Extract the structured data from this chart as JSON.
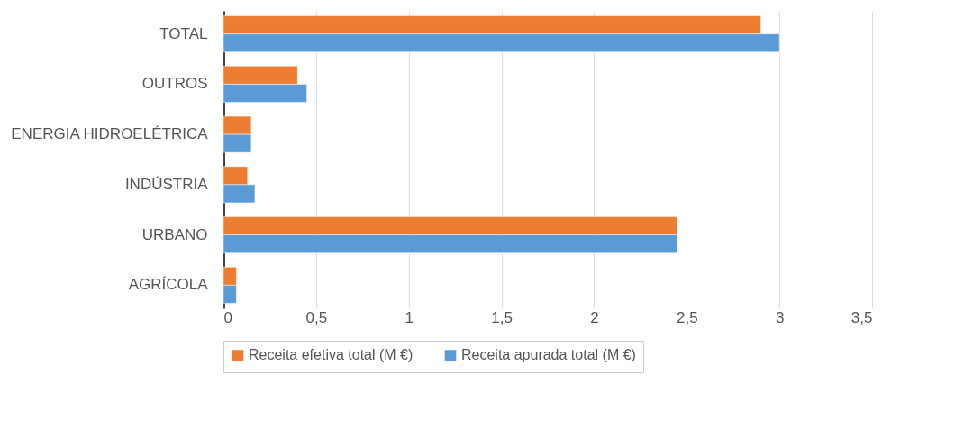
{
  "chart_data": {
    "type": "bar",
    "orientation": "horizontal",
    "categories": [
      "TOTAL",
      "OUTROS",
      "ENERGIA HIDROELÉTRICA",
      "INDÚSTRIA",
      "URBANO",
      "AGRÍCOLA"
    ],
    "series": [
      {
        "name": "Receita efetiva total (M €)",
        "color": "#ed7d31",
        "values": [
          2.9,
          0.4,
          0.15,
          0.13,
          2.45,
          0.07
        ]
      },
      {
        "name": "Receita apurada total (M €)",
        "color": "#5b9bd5",
        "values": [
          3.0,
          0.45,
          0.15,
          0.17,
          2.45,
          0.07
        ]
      }
    ],
    "xlim": [
      0,
      3.5
    ],
    "xticks": [
      0,
      {
        "value": 0.5,
        "label": "0,5"
      },
      1,
      {
        "value": 1.5,
        "label": "1,5"
      },
      2,
      {
        "value": 2.5,
        "label": "2,5"
      },
      3,
      {
        "value": 3.5,
        "label": "3,5"
      }
    ],
    "grid": true,
    "legend": "bottom"
  }
}
